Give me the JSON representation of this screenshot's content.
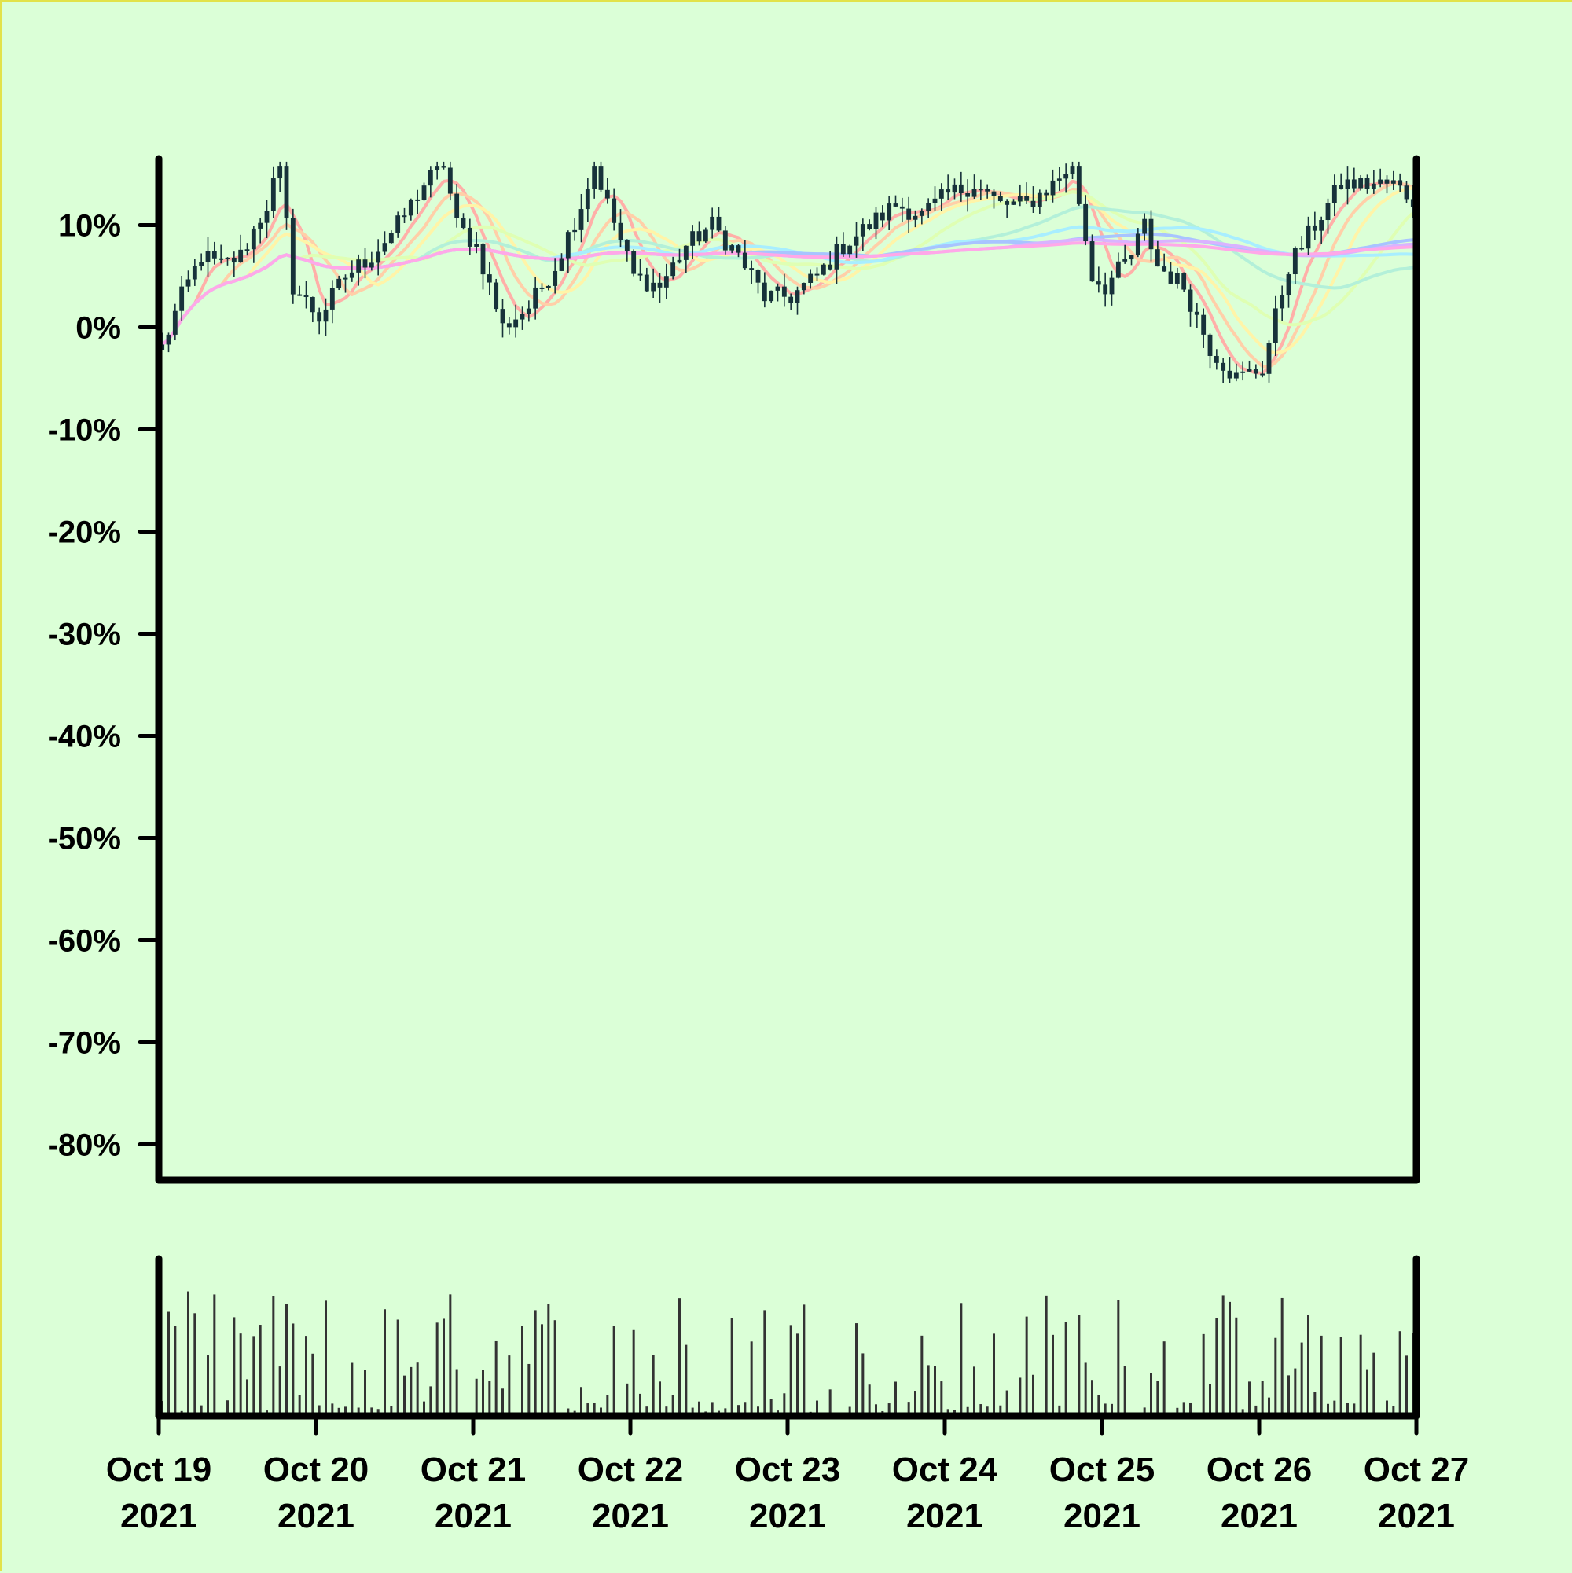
{
  "chart_data": {
    "type": "candlestick",
    "title": "",
    "xlabel": "",
    "ylabel": "",
    "y_axis": {
      "ticks": [
        10,
        0,
        -10,
        -20,
        -30,
        -40,
        -50,
        -60,
        -70,
        -80
      ],
      "tick_labels": [
        "10%",
        "0%",
        "-10%",
        "-20%",
        "-30%",
        "-40%",
        "-50%",
        "-60%",
        "-70%",
        "-80%"
      ],
      "range": [
        -83.5,
        16.5
      ],
      "unit": "%"
    },
    "x_axis": {
      "range": [
        "2021-10-19",
        "2021-10-27"
      ],
      "ticks": [
        {
          "date": "2021-10-19",
          "line1": "Oct 19",
          "line2": "2021"
        },
        {
          "date": "2021-10-20",
          "line1": "Oct 20",
          "line2": "2021"
        },
        {
          "date": "2021-10-21",
          "line1": "Oct 21",
          "line2": "2021"
        },
        {
          "date": "2021-10-22",
          "line1": "Oct 22",
          "line2": "2021"
        },
        {
          "date": "2021-10-23",
          "line1": "Oct 23",
          "line2": "2021"
        },
        {
          "date": "2021-10-24",
          "line1": "Oct 24",
          "line2": "2021"
        },
        {
          "date": "2021-10-25",
          "line1": "Oct 25",
          "line2": "2021"
        },
        {
          "date": "2021-10-26",
          "line1": "Oct 26",
          "line2": "2021"
        },
        {
          "date": "2021-10-27",
          "line1": "Oct 27",
          "line2": "2021"
        }
      ]
    },
    "grid": false,
    "legend": "none",
    "price_keypoints": [
      [
        "2021-10-19 00:00",
        -2
      ],
      [
        "2021-10-19 03:00",
        3
      ],
      [
        "2021-10-19 06:00",
        7
      ],
      [
        "2021-10-19 09:00",
        6
      ],
      [
        "2021-10-19 12:00",
        7
      ],
      [
        "2021-10-19 16:00",
        12
      ],
      [
        "2021-10-19 18:00",
        16
      ],
      [
        "2021-10-19 20:00",
        4
      ],
      [
        "2021-10-20 00:00",
        1
      ],
      [
        "2021-10-20 04:00",
        5
      ],
      [
        "2021-10-20 08:00",
        7
      ],
      [
        "2021-10-20 12:00",
        10
      ],
      [
        "2021-10-20 16:00",
        14
      ],
      [
        "2021-10-20 19:00",
        16
      ],
      [
        "2021-10-20 21:00",
        10
      ],
      [
        "2021-10-21 00:00",
        8
      ],
      [
        "2021-10-21 04:00",
        0
      ],
      [
        "2021-10-21 08:00",
        2
      ],
      [
        "2021-10-21 12:00",
        6
      ],
      [
        "2021-10-21 16:00",
        12
      ],
      [
        "2021-10-21 18:00",
        16
      ],
      [
        "2021-10-21 20:00",
        12
      ],
      [
        "2021-10-22 00:00",
        5
      ],
      [
        "2021-10-22 04:00",
        4
      ],
      [
        "2021-10-22 08:00",
        8
      ],
      [
        "2021-10-22 12:00",
        10
      ],
      [
        "2021-10-22 16:00",
        7
      ],
      [
        "2021-10-22 20:00",
        3
      ],
      [
        "2021-10-23 00:00",
        3
      ],
      [
        "2021-10-23 04:00",
        5
      ],
      [
        "2021-10-23 08:00",
        8
      ],
      [
        "2021-10-23 12:00",
        10
      ],
      [
        "2021-10-23 16:00",
        12
      ],
      [
        "2021-10-23 20:00",
        11
      ],
      [
        "2021-10-24 00:00",
        13
      ],
      [
        "2021-10-24 04:00",
        14
      ],
      [
        "2021-10-24 08:00",
        12
      ],
      [
        "2021-10-24 12:00",
        12
      ],
      [
        "2021-10-24 16:00",
        14
      ],
      [
        "2021-10-24 19:00",
        16
      ],
      [
        "2021-10-24 22:00",
        5
      ],
      [
        "2021-10-25 00:00",
        4
      ],
      [
        "2021-10-25 04:00",
        7
      ],
      [
        "2021-10-25 06:00",
        10
      ],
      [
        "2021-10-25 08:00",
        6
      ],
      [
        "2021-10-25 12:00",
        4
      ],
      [
        "2021-10-25 16:00",
        -2
      ],
      [
        "2021-10-25 20:00",
        -5
      ],
      [
        "2021-10-26 00:00",
        -4
      ],
      [
        "2021-10-26 04:00",
        6
      ],
      [
        "2021-10-26 08:00",
        10
      ],
      [
        "2021-10-26 12:00",
        14
      ],
      [
        "2021-10-26 16:00",
        14
      ],
      [
        "2021-10-26 20:00",
        14
      ],
      [
        "2021-10-27 00:00",
        12
      ]
    ],
    "candle_interval_hours": 1,
    "candle_color": "#17323a",
    "moving_average_colors": [
      "#ffafa8",
      "#ffcfa8",
      "#fff4a8",
      "#dfffb3",
      "#b3f0d9",
      "#a8eeff",
      "#a8c4ff",
      "#d9b3ff",
      "#ffa8e8"
    ],
    "volume_color": "#333333",
    "volume_range": [
      0,
      150
    ]
  }
}
